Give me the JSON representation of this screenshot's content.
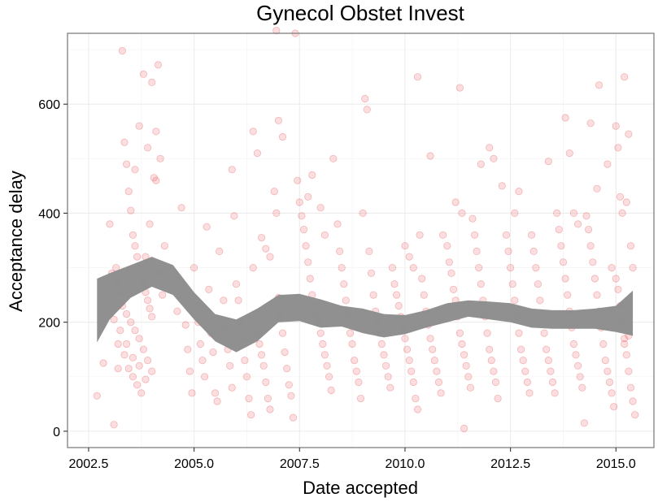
{
  "chart_data": {
    "type": "scatter",
    "title": "Gynecol Obstet Invest",
    "xlabel": "Date accepted",
    "ylabel": "Acceptance delay",
    "xlim": [
      2002.0,
      2015.9
    ],
    "ylim": [
      -30,
      730
    ],
    "x_ticks": [
      2002.5,
      2005.0,
      2007.5,
      2010.0,
      2012.5,
      2015.0
    ],
    "x_tick_labels": [
      "2002.5",
      "2005.0",
      "2007.5",
      "2010.0",
      "2012.5",
      "2015.0"
    ],
    "y_ticks": [
      0,
      200,
      400,
      600
    ],
    "y_tick_labels": [
      "0",
      "200",
      "400",
      "600"
    ],
    "grid": true,
    "legend": "none",
    "point_color": "#e8474c",
    "band_color": "#8c8c8c",
    "smooth_band": {
      "x": [
        2002.7,
        2003.0,
        2003.5,
        2004.0,
        2004.5,
        2005.0,
        2005.5,
        2006.0,
        2006.5,
        2007.0,
        2007.5,
        2008.0,
        2008.5,
        2009.0,
        2009.5,
        2010.0,
        2010.5,
        2011.0,
        2011.5,
        2012.0,
        2012.5,
        2013.0,
        2013.5,
        2014.0,
        2014.5,
        2015.0,
        2015.4
      ],
      "lower": [
        163,
        205,
        245,
        265,
        250,
        205,
        165,
        145,
        165,
        200,
        202,
        190,
        192,
        180,
        172,
        178,
        190,
        200,
        210,
        205,
        200,
        190,
        188,
        188,
        188,
        182,
        175
      ],
      "upper": [
        280,
        290,
        305,
        320,
        305,
        255,
        215,
        205,
        225,
        250,
        252,
        242,
        230,
        225,
        215,
        213,
        222,
        235,
        240,
        238,
        235,
        225,
        222,
        222,
        225,
        230,
        258
      ]
    },
    "points": [
      [
        2002.7,
        65
      ],
      [
        2002.85,
        125
      ],
      [
        2003.0,
        380
      ],
      [
        2003.1,
        12
      ],
      [
        2003.2,
        115
      ],
      [
        2003.3,
        698
      ],
      [
        2003.35,
        530
      ],
      [
        2003.4,
        490
      ],
      [
        2003.45,
        440
      ],
      [
        2003.5,
        405
      ],
      [
        2003.55,
        360
      ],
      [
        2003.6,
        340
      ],
      [
        2003.65,
        320
      ],
      [
        2003.7,
        300
      ],
      [
        2003.75,
        280
      ],
      [
        2003.8,
        270
      ],
      [
        2003.85,
        255
      ],
      [
        2003.9,
        240
      ],
      [
        2003.95,
        225
      ],
      [
        2004.0,
        210
      ],
      [
        2003.05,
        290
      ],
      [
        2003.15,
        270
      ],
      [
        2003.25,
        255
      ],
      [
        2003.3,
        230
      ],
      [
        2003.4,
        215
      ],
      [
        2003.5,
        200
      ],
      [
        2003.6,
        185
      ],
      [
        2003.7,
        170
      ],
      [
        2003.8,
        150
      ],
      [
        2003.9,
        130
      ],
      [
        2004.0,
        110
      ],
      [
        2003.2,
        160
      ],
      [
        2003.35,
        140
      ],
      [
        2003.45,
        115
      ],
      [
        2003.55,
        100
      ],
      [
        2003.65,
        85
      ],
      [
        2003.75,
        70
      ],
      [
        2003.85,
        320
      ],
      [
        2003.95,
        380
      ],
      [
        2004.05,
        465
      ],
      [
        2004.1,
        550
      ],
      [
        2004.15,
        672
      ],
      [
        2003.8,
        655
      ],
      [
        2004.0,
        640
      ],
      [
        2003.9,
        520
      ],
      [
        2004.2,
        500
      ],
      [
        2004.1,
        460
      ],
      [
        2003.7,
        560
      ],
      [
        2003.6,
        480
      ],
      [
        2004.3,
        340
      ],
      [
        2004.2,
        290
      ],
      [
        2004.25,
        250
      ],
      [
        2003.15,
        300
      ],
      [
        2003.0,
        240
      ],
      [
        2003.1,
        205
      ],
      [
        2003.25,
        185
      ],
      [
        2003.4,
        160
      ],
      [
        2003.55,
        135
      ],
      [
        2003.7,
        120
      ],
      [
        2003.85,
        95
      ],
      [
        2004.6,
        220
      ],
      [
        2004.7,
        410
      ],
      [
        2004.8,
        195
      ],
      [
        2004.85,
        150
      ],
      [
        2004.9,
        110
      ],
      [
        2004.95,
        70
      ],
      [
        2005.0,
        300
      ],
      [
        2005.05,
        230
      ],
      [
        2005.1,
        200
      ],
      [
        2005.15,
        160
      ],
      [
        2005.2,
        130
      ],
      [
        2005.25,
        100
      ],
      [
        2005.3,
        375
      ],
      [
        2005.35,
        260
      ],
      [
        2005.4,
        180
      ],
      [
        2005.45,
        145
      ],
      [
        2005.5,
        70
      ],
      [
        2005.55,
        55
      ],
      [
        2005.6,
        330
      ],
      [
        2005.7,
        240
      ],
      [
        2005.75,
        190
      ],
      [
        2005.8,
        150
      ],
      [
        2005.85,
        120
      ],
      [
        2005.9,
        80
      ],
      [
        2005.95,
        395
      ],
      [
        2006.0,
        270
      ],
      [
        2006.05,
        240
      ],
      [
        2006.1,
        200
      ],
      [
        2006.15,
        170
      ],
      [
        2006.2,
        130
      ],
      [
        2006.25,
        100
      ],
      [
        2006.3,
        60
      ],
      [
        2006.35,
        30
      ],
      [
        2005.9,
        480
      ],
      [
        2006.4,
        300
      ],
      [
        2006.5,
        180
      ],
      [
        2006.55,
        160
      ],
      [
        2006.6,
        140
      ],
      [
        2006.65,
        120
      ],
      [
        2006.7,
        90
      ],
      [
        2006.75,
        60
      ],
      [
        2006.8,
        40
      ],
      [
        2006.4,
        550
      ],
      [
        2006.5,
        510
      ],
      [
        2006.6,
        355
      ],
      [
        2006.7,
        335
      ],
      [
        2006.8,
        320
      ],
      [
        2006.9,
        440
      ],
      [
        2006.95,
        400
      ],
      [
        2007.0,
        245
      ],
      [
        2007.05,
        210
      ],
      [
        2007.1,
        180
      ],
      [
        2007.15,
        145
      ],
      [
        2007.2,
        115
      ],
      [
        2007.25,
        85
      ],
      [
        2007.3,
        65
      ],
      [
        2007.35,
        25
      ],
      [
        2007.0,
        570
      ],
      [
        2007.1,
        540
      ],
      [
        2006.95,
        735
      ],
      [
        2007.4,
        730
      ],
      [
        2007.45,
        460
      ],
      [
        2007.5,
        420
      ],
      [
        2007.55,
        395
      ],
      [
        2007.6,
        370
      ],
      [
        2007.65,
        340
      ],
      [
        2007.7,
        310
      ],
      [
        2007.75,
        280
      ],
      [
        2007.8,
        250
      ],
      [
        2007.85,
        230
      ],
      [
        2007.9,
        215
      ],
      [
        2007.95,
        200
      ],
      [
        2008.0,
        180
      ],
      [
        2008.05,
        160
      ],
      [
        2008.1,
        140
      ],
      [
        2008.15,
        120
      ],
      [
        2008.2,
        100
      ],
      [
        2008.25,
        75
      ],
      [
        2007.7,
        430
      ],
      [
        2007.8,
        470
      ],
      [
        2008.0,
        410
      ],
      [
        2008.1,
        360
      ],
      [
        2008.3,
        500
      ],
      [
        2008.4,
        380
      ],
      [
        2008.45,
        330
      ],
      [
        2008.5,
        300
      ],
      [
        2008.55,
        270
      ],
      [
        2008.6,
        240
      ],
      [
        2008.65,
        210
      ],
      [
        2008.7,
        180
      ],
      [
        2008.75,
        160
      ],
      [
        2008.8,
        130
      ],
      [
        2008.85,
        110
      ],
      [
        2008.9,
        90
      ],
      [
        2008.95,
        60
      ],
      [
        2009.0,
        400
      ],
      [
        2009.05,
        610
      ],
      [
        2009.1,
        590
      ],
      [
        2009.15,
        330
      ],
      [
        2009.2,
        290
      ],
      [
        2009.25,
        250
      ],
      [
        2009.3,
        220
      ],
      [
        2009.35,
        200
      ],
      [
        2009.4,
        180
      ],
      [
        2009.45,
        160
      ],
      [
        2009.5,
        140
      ],
      [
        2009.55,
        120
      ],
      [
        2009.6,
        100
      ],
      [
        2009.65,
        80
      ],
      [
        2009.7,
        300
      ],
      [
        2009.75,
        270
      ],
      [
        2009.8,
        250
      ],
      [
        2009.85,
        230
      ],
      [
        2009.9,
        210
      ],
      [
        2009.95,
        190
      ],
      [
        2010.0,
        170
      ],
      [
        2010.05,
        150
      ],
      [
        2010.1,
        130
      ],
      [
        2010.15,
        110
      ],
      [
        2010.2,
        90
      ],
      [
        2010.25,
        60
      ],
      [
        2010.3,
        40
      ],
      [
        2010.0,
        340
      ],
      [
        2010.1,
        320
      ],
      [
        2010.2,
        300
      ],
      [
        2010.3,
        650
      ],
      [
        2010.35,
        360
      ],
      [
        2010.4,
        280
      ],
      [
        2010.45,
        250
      ],
      [
        2010.5,
        220
      ],
      [
        2010.55,
        195
      ],
      [
        2010.6,
        170
      ],
      [
        2010.65,
        150
      ],
      [
        2010.7,
        130
      ],
      [
        2010.75,
        110
      ],
      [
        2010.8,
        90
      ],
      [
        2010.85,
        70
      ],
      [
        2010.6,
        505
      ],
      [
        2010.9,
        360
      ],
      [
        2011.0,
        340
      ],
      [
        2011.05,
        310
      ],
      [
        2011.1,
        290
      ],
      [
        2011.15,
        260
      ],
      [
        2011.2,
        240
      ],
      [
        2011.25,
        210
      ],
      [
        2011.3,
        180
      ],
      [
        2011.35,
        160
      ],
      [
        2011.4,
        140
      ],
      [
        2011.45,
        120
      ],
      [
        2011.5,
        100
      ],
      [
        2011.55,
        80
      ],
      [
        2011.3,
        630
      ],
      [
        2011.2,
        420
      ],
      [
        2011.35,
        400
      ],
      [
        2011.4,
        5
      ],
      [
        2011.6,
        390
      ],
      [
        2011.65,
        360
      ],
      [
        2011.7,
        330
      ],
      [
        2011.75,
        300
      ],
      [
        2011.8,
        270
      ],
      [
        2011.85,
        240
      ],
      [
        2011.9,
        210
      ],
      [
        2011.95,
        180
      ],
      [
        2012.0,
        150
      ],
      [
        2012.05,
        130
      ],
      [
        2012.1,
        110
      ],
      [
        2012.15,
        90
      ],
      [
        2012.2,
        60
      ],
      [
        2011.8,
        490
      ],
      [
        2012.0,
        520
      ],
      [
        2012.1,
        500
      ],
      [
        2012.3,
        450
      ],
      [
        2012.4,
        360
      ],
      [
        2012.45,
        330
      ],
      [
        2012.5,
        300
      ],
      [
        2012.55,
        270
      ],
      [
        2012.6,
        240
      ],
      [
        2012.65,
        210
      ],
      [
        2012.7,
        180
      ],
      [
        2012.75,
        150
      ],
      [
        2012.8,
        130
      ],
      [
        2012.85,
        110
      ],
      [
        2012.9,
        90
      ],
      [
        2012.95,
        70
      ],
      [
        2012.6,
        400
      ],
      [
        2012.7,
        440
      ],
      [
        2013.0,
        360
      ],
      [
        2013.05,
        330
      ],
      [
        2013.1,
        300
      ],
      [
        2013.15,
        270
      ],
      [
        2013.2,
        240
      ],
      [
        2013.25,
        210
      ],
      [
        2013.3,
        180
      ],
      [
        2013.35,
        150
      ],
      [
        2013.4,
        130
      ],
      [
        2013.45,
        110
      ],
      [
        2013.5,
        90
      ],
      [
        2013.55,
        70
      ],
      [
        2013.4,
        495
      ],
      [
        2013.6,
        400
      ],
      [
        2013.65,
        370
      ],
      [
        2013.7,
        340
      ],
      [
        2013.75,
        310
      ],
      [
        2013.8,
        280
      ],
      [
        2013.85,
        250
      ],
      [
        2013.9,
        220
      ],
      [
        2013.95,
        190
      ],
      [
        2014.0,
        160
      ],
      [
        2014.05,
        140
      ],
      [
        2014.1,
        120
      ],
      [
        2014.15,
        100
      ],
      [
        2014.2,
        80
      ],
      [
        2014.25,
        15
      ],
      [
        2013.8,
        575
      ],
      [
        2013.9,
        510
      ],
      [
        2014.0,
        400
      ],
      [
        2014.1,
        380
      ],
      [
        2014.3,
        395
      ],
      [
        2014.35,
        370
      ],
      [
        2014.4,
        340
      ],
      [
        2014.45,
        310
      ],
      [
        2014.5,
        280
      ],
      [
        2014.55,
        250
      ],
      [
        2014.6,
        220
      ],
      [
        2014.65,
        190
      ],
      [
        2014.7,
        160
      ],
      [
        2014.75,
        130
      ],
      [
        2014.8,
        110
      ],
      [
        2014.85,
        90
      ],
      [
        2014.9,
        70
      ],
      [
        2014.95,
        45
      ],
      [
        2014.4,
        565
      ],
      [
        2014.6,
        635
      ],
      [
        2014.55,
        445
      ],
      [
        2014.8,
        490
      ],
      [
        2015.0,
        560
      ],
      [
        2015.05,
        520
      ],
      [
        2015.1,
        430
      ],
      [
        2015.15,
        400
      ],
      [
        2015.2,
        650
      ],
      [
        2015.25,
        420
      ],
      [
        2015.3,
        545
      ],
      [
        2015.35,
        340
      ],
      [
        2015.4,
        300
      ],
      [
        2015.05,
        260
      ],
      [
        2015.1,
        230
      ],
      [
        2015.15,
        200
      ],
      [
        2015.2,
        170
      ],
      [
        2015.25,
        140
      ],
      [
        2015.3,
        110
      ],
      [
        2015.35,
        80
      ],
      [
        2015.4,
        55
      ],
      [
        2015.45,
        30
      ],
      [
        2014.9,
        300
      ],
      [
        2015.0,
        280
      ],
      [
        2015.2,
        160
      ],
      [
        2015.3,
        175
      ]
    ]
  }
}
